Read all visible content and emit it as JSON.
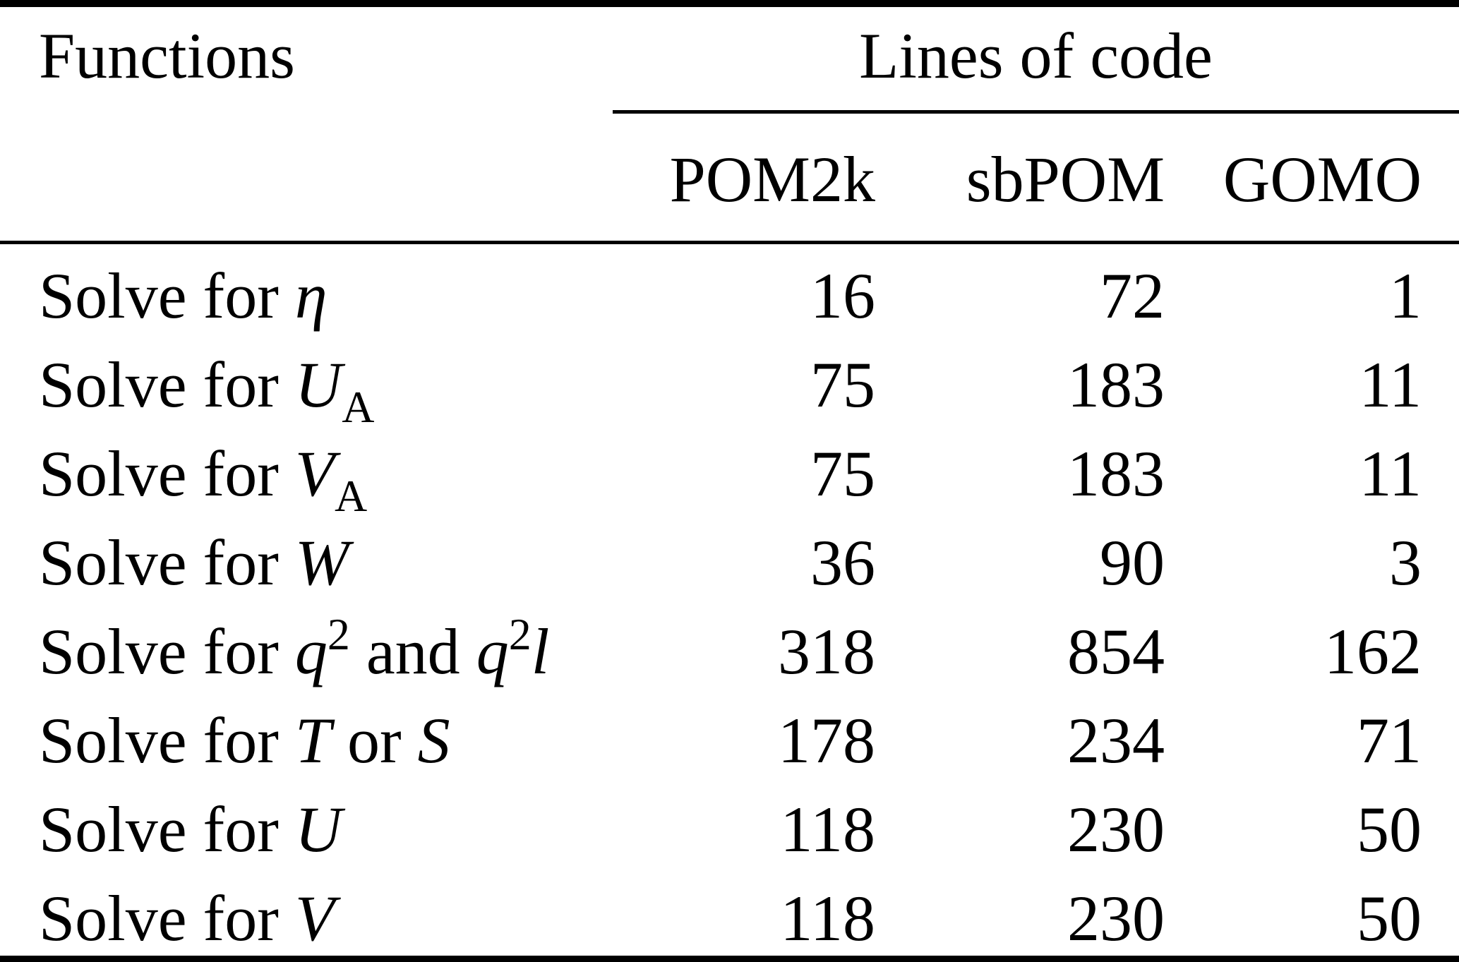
{
  "page": {
    "background": "#ffffff",
    "text_color": "#000000",
    "rule_color": "#000000"
  },
  "table": {
    "functions_header": "Functions",
    "group_header": "Lines of code",
    "columns": [
      "POM2k",
      "sbPOM",
      "GOMO"
    ],
    "rows": [
      {
        "label": [
          {
            "t": "Solve for ",
            "s": "plain"
          },
          {
            "t": "η",
            "s": "italic"
          }
        ],
        "values": [
          "16",
          "72",
          "1"
        ]
      },
      {
        "label": [
          {
            "t": "Solve for ",
            "s": "plain"
          },
          {
            "t": "U",
            "s": "italic"
          },
          {
            "t": "A",
            "s": "sub"
          }
        ],
        "values": [
          "75",
          "183",
          "11"
        ]
      },
      {
        "label": [
          {
            "t": "Solve for ",
            "s": "plain"
          },
          {
            "t": "V",
            "s": "italic"
          },
          {
            "t": "A",
            "s": "sub"
          }
        ],
        "values": [
          "75",
          "183",
          "11"
        ]
      },
      {
        "label": [
          {
            "t": "Solve for ",
            "s": "plain"
          },
          {
            "t": "W",
            "s": "italic"
          }
        ],
        "values": [
          "36",
          "90",
          "3"
        ]
      },
      {
        "label": [
          {
            "t": "Solve for ",
            "s": "plain"
          },
          {
            "t": "q",
            "s": "italic"
          },
          {
            "t": "2",
            "s": "sup"
          },
          {
            "t": " and ",
            "s": "plain"
          },
          {
            "t": "q",
            "s": "italic"
          },
          {
            "t": "2",
            "s": "sup"
          },
          {
            "t": "l",
            "s": "italic"
          }
        ],
        "values": [
          "318",
          "854",
          "162"
        ]
      },
      {
        "label": [
          {
            "t": "Solve for ",
            "s": "plain"
          },
          {
            "t": "T",
            "s": "italic"
          },
          {
            "t": " or ",
            "s": "plain"
          },
          {
            "t": "S",
            "s": "italic"
          }
        ],
        "values": [
          "178",
          "234",
          "71"
        ]
      },
      {
        "label": [
          {
            "t": "Solve for ",
            "s": "plain"
          },
          {
            "t": "U",
            "s": "italic"
          }
        ],
        "values": [
          "118",
          "230",
          "50"
        ]
      },
      {
        "label": [
          {
            "t": "Solve for ",
            "s": "plain"
          },
          {
            "t": "V",
            "s": "italic"
          }
        ],
        "values": [
          "118",
          "230",
          "50"
        ]
      }
    ]
  }
}
